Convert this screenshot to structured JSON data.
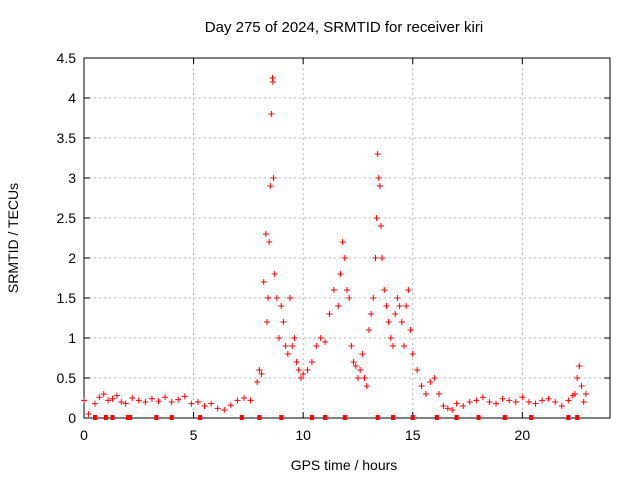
{
  "chart_data": {
    "type": "scatter",
    "title": "Day 275 of 2024, SRMTID for receiver kiri",
    "xlabel": "GPS time / hours",
    "ylabel": "SRMTID / TECUs",
    "xlim": [
      0,
      24
    ],
    "ylim": [
      0,
      4.5
    ],
    "x_ticks": [
      0,
      5,
      10,
      15,
      20
    ],
    "x_tick_labels": [
      "0",
      "5",
      "10",
      "15",
      "20"
    ],
    "y_ticks": [
      0,
      0.5,
      1,
      1.5,
      2,
      2.5,
      3,
      3.5,
      4,
      4.5
    ],
    "y_tick_labels": [
      "0",
      "0.5",
      "1",
      "1.5",
      "2",
      "2.5",
      "3",
      "3.5",
      "4",
      "4.5"
    ],
    "grid": true,
    "marker": "+",
    "marker_color": "#ff0000",
    "series": [
      {
        "name": "SRMTID",
        "x": [
          0.0,
          0.2,
          0.5,
          0.7,
          0.9,
          1.1,
          1.3,
          1.5,
          1.7,
          1.9,
          2.2,
          2.5,
          2.8,
          3.1,
          3.4,
          3.7,
          4.0,
          4.3,
          4.6,
          4.9,
          5.2,
          5.5,
          5.8,
          6.1,
          6.4,
          6.7,
          7.0,
          7.3,
          7.6,
          7.9,
          8.0,
          8.1,
          8.2,
          8.3,
          8.35,
          8.4,
          8.45,
          8.5,
          8.55,
          8.6,
          8.62,
          8.65,
          8.7,
          8.8,
          8.9,
          9.0,
          9.1,
          9.2,
          9.3,
          9.4,
          9.5,
          9.6,
          9.7,
          9.8,
          9.9,
          10.0,
          10.2,
          10.4,
          10.6,
          10.8,
          11.0,
          11.2,
          11.4,
          11.6,
          11.7,
          11.8,
          11.9,
          12.0,
          12.1,
          12.2,
          12.3,
          12.4,
          12.5,
          12.6,
          12.7,
          12.8,
          12.9,
          13.0,
          13.1,
          13.2,
          13.3,
          13.35,
          13.4,
          13.45,
          13.5,
          13.55,
          13.6,
          13.7,
          13.8,
          13.9,
          14.0,
          14.1,
          14.2,
          14.3,
          14.4,
          14.5,
          14.6,
          14.7,
          14.8,
          14.9,
          15.0,
          15.2,
          15.4,
          15.6,
          15.8,
          16.0,
          16.2,
          16.4,
          16.6,
          16.8,
          17.0,
          17.3,
          17.6,
          17.9,
          18.2,
          18.5,
          18.8,
          19.1,
          19.4,
          19.7,
          20.0,
          20.3,
          20.6,
          20.9,
          21.2,
          21.5,
          21.8,
          22.1,
          22.3,
          22.4,
          22.5,
          22.6,
          22.7,
          22.8,
          22.9
        ],
        "y": [
          0.22,
          0.05,
          0.18,
          0.26,
          0.3,
          0.22,
          0.24,
          0.28,
          0.2,
          0.18,
          0.25,
          0.22,
          0.2,
          0.24,
          0.21,
          0.26,
          0.2,
          0.23,
          0.27,
          0.18,
          0.2,
          0.15,
          0.18,
          0.12,
          0.1,
          0.16,
          0.22,
          0.25,
          0.22,
          0.45,
          0.6,
          0.55,
          1.7,
          2.3,
          1.2,
          1.5,
          2.2,
          2.9,
          3.8,
          4.25,
          4.2,
          3.0,
          1.8,
          1.5,
          1.0,
          1.4,
          1.2,
          0.9,
          0.8,
          1.5,
          0.9,
          1.0,
          0.7,
          0.6,
          0.5,
          0.55,
          0.6,
          0.7,
          0.9,
          1.0,
          0.95,
          1.3,
          1.6,
          1.4,
          1.8,
          2.2,
          2.0,
          1.6,
          1.5,
          0.9,
          0.7,
          0.65,
          0.5,
          0.6,
          0.8,
          0.5,
          0.4,
          1.1,
          1.3,
          1.5,
          2.0,
          2.5,
          3.3,
          3.0,
          2.9,
          2.4,
          2.0,
          1.6,
          1.4,
          1.2,
          1.0,
          0.9,
          1.3,
          1.5,
          1.4,
          1.2,
          0.9,
          1.4,
          1.6,
          1.1,
          0.8,
          0.6,
          0.4,
          0.3,
          0.45,
          0.5,
          0.3,
          0.15,
          0.12,
          0.1,
          0.18,
          0.15,
          0.2,
          0.22,
          0.26,
          0.2,
          0.18,
          0.24,
          0.22,
          0.2,
          0.26,
          0.2,
          0.18,
          0.22,
          0.24,
          0.2,
          0.15,
          0.22,
          0.28,
          0.3,
          0.5,
          0.65,
          0.4,
          0.2,
          0.3
        ]
      }
    ],
    "zero_markers_x": [
      0.5,
      1.0,
      1.3,
      2.0,
      2.1,
      3.3,
      4.0,
      5.3,
      7.2,
      8.0,
      9.0,
      10.4,
      11.0,
      11.9,
      13.4,
      14.1,
      15.0,
      16.1,
      17.0,
      18.0,
      19.2,
      20.4,
      22.1,
      22.5
    ]
  }
}
